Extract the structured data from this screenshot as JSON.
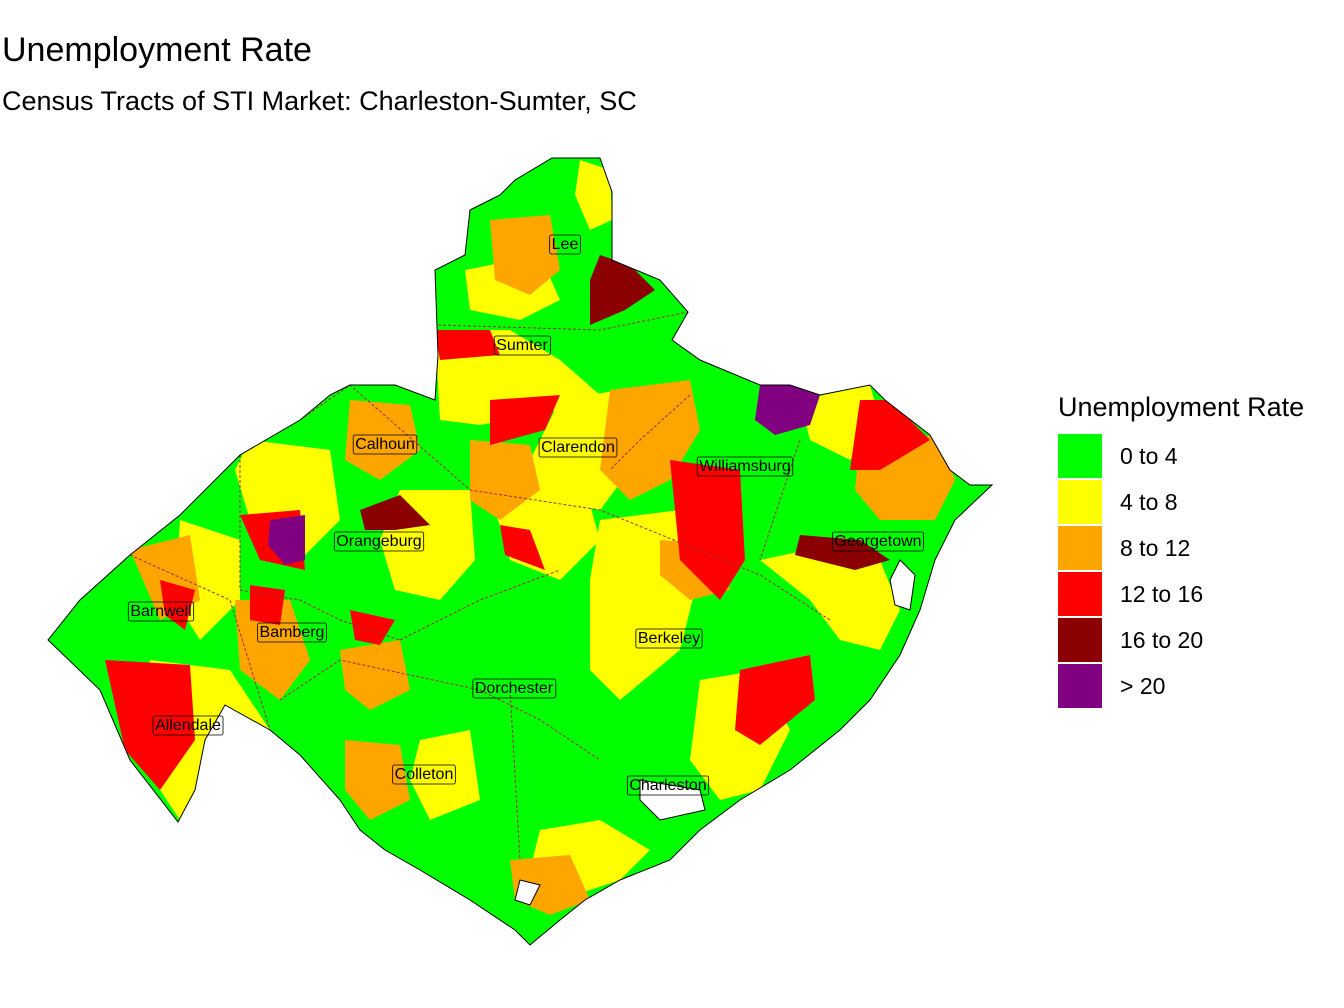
{
  "title": "Unemployment Rate",
  "subtitle": "Census Tracts of STI Market: Charleston-Sumter, SC",
  "legend": {
    "title": "Unemployment Rate",
    "items": [
      {
        "label": "0 to 4",
        "color": "#00ff00"
      },
      {
        "label": "4 to 8",
        "color": "#ffff00"
      },
      {
        "label": "8 to 12",
        "color": "#ffa500"
      },
      {
        "label": "12 to 16",
        "color": "#ff0000"
      },
      {
        "label": "16 to 20",
        "color": "#8b0000"
      },
      {
        "label": "> 20",
        "color": "#800080"
      }
    ]
  },
  "counties": {
    "lee": "Lee",
    "sumter": "Sumter",
    "calhoun": "Calhoun",
    "clarendon": "Clarendon",
    "williamsburg": "Williamsburg",
    "orangeburg": "Orangeburg",
    "georgetown": "Georgetown",
    "barnwell": "Barnwell",
    "bamberg": "Bamberg",
    "berkeley": "Berkeley",
    "dorchester": "Dorchester",
    "allendale": "Allendale",
    "colleton": "Colleton",
    "charleston": "Charleston"
  }
}
